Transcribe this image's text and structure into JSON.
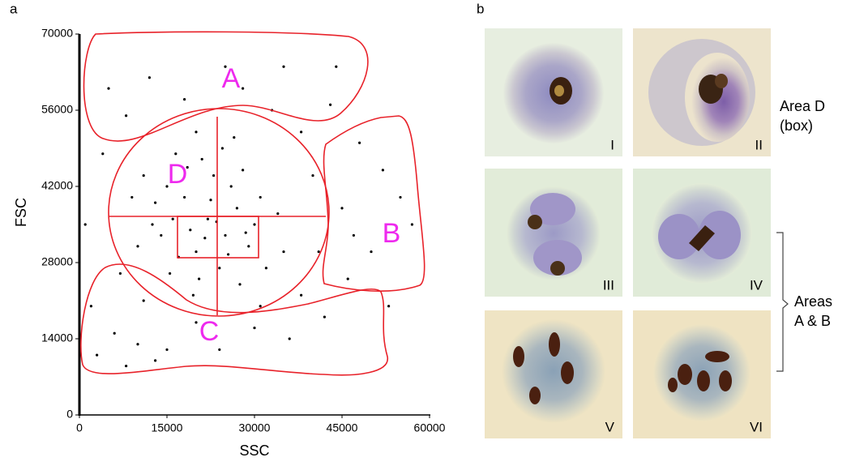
{
  "panel_labels": [
    "a",
    "b"
  ],
  "chart_data": {
    "type": "scatter",
    "x_label": "SSC",
    "y_label": "FSC",
    "color": "#000000",
    "xlim": [
      0,
      60000
    ],
    "ylim": [
      0,
      70000
    ],
    "xticks": [
      0,
      15000,
      30000,
      45000,
      60000
    ],
    "yticks": [
      0,
      14000,
      28000,
      42000,
      56000,
      70000
    ],
    "annotations": [
      "A",
      "B",
      "C",
      "D"
    ],
    "x": [
      22000,
      18000,
      25000,
      20000,
      27000,
      15000,
      23000,
      19000,
      29000,
      24000,
      16000,
      21000,
      26000,
      13000,
      30000,
      17000,
      22500,
      28000,
      14000,
      20500,
      31000,
      11000,
      25500,
      18500,
      32000,
      12500,
      24500,
      27500,
      16500,
      21500,
      9000,
      34000,
      19500,
      26500,
      10000,
      35000,
      23500,
      15500,
      28500,
      20000,
      5000,
      8000,
      40000,
      45000,
      50000,
      52000,
      38000,
      42000,
      6000,
      3000,
      10000,
      15000,
      20000,
      30000,
      36000,
      55000,
      48000,
      12000,
      25000,
      35000,
      44000,
      2000,
      7000,
      4000,
      33000,
      46000,
      53000,
      57000,
      41000,
      8000,
      13000,
      18000,
      28000,
      38000,
      43000,
      1000,
      11000,
      24000,
      31000,
      47000
    ],
    "y": [
      36000,
      40000,
      33000,
      30000,
      38000,
      42000,
      44000,
      34000,
      31000,
      27000,
      36000,
      47000,
      42000,
      39000,
      35000,
      29000,
      39500,
      45000,
      33000,
      25000,
      40000,
      44000,
      29500,
      45500,
      27000,
      35000,
      49000,
      24000,
      48000,
      32500,
      40000,
      37000,
      22000,
      51000,
      31000,
      30000,
      35500,
      26000,
      33500,
      52000,
      60000,
      55000,
      44000,
      38000,
      30000,
      45000,
      22000,
      18000,
      15000,
      11000,
      13000,
      12000,
      17000,
      16000,
      14000,
      40000,
      50000,
      62000,
      64000,
      64000,
      64000,
      20000,
      26000,
      48000,
      56000,
      25000,
      20000,
      35000,
      30000,
      9000,
      10000,
      58000,
      60000,
      52000,
      57000,
      35000,
      21000,
      12000,
      20000,
      33000
    ]
  },
  "images": {
    "labels": [
      "I",
      "II",
      "III",
      "IV",
      "V",
      "VI"
    ],
    "annotations": [
      [
        "Area D",
        "(box)"
      ],
      [
        "Areas",
        "A & B"
      ]
    ]
  }
}
